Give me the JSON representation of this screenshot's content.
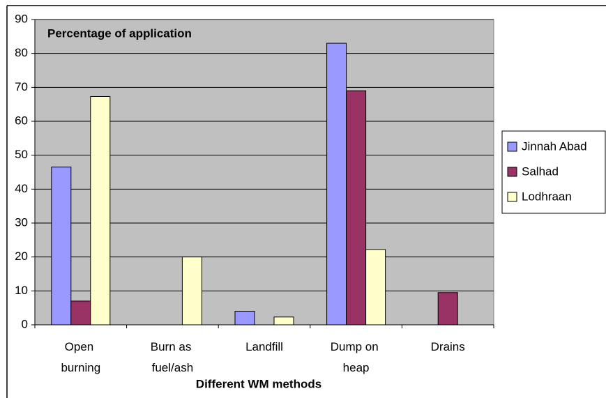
{
  "chart_data": {
    "type": "bar",
    "title": "Percentage of application",
    "x_label": "Different WM methods",
    "categories": [
      "Open burning",
      "Burn as fuel/ash",
      "Landfill",
      "Dump on heap",
      "Drains"
    ],
    "series": [
      {
        "name": "Jinnah Abad",
        "color": "#9999ff",
        "values": [
          46.5,
          0,
          4,
          83,
          0
        ]
      },
      {
        "name": "Salhad",
        "color": "#993366",
        "values": [
          7,
          0,
          0,
          69,
          9.5
        ]
      },
      {
        "name": "Lodhraan",
        "color": "#ffffcc",
        "values": [
          67.3,
          20,
          2.3,
          22.2,
          0
        ]
      }
    ],
    "ylim": [
      0,
      90
    ],
    "yticks": [
      0,
      10,
      20,
      30,
      40,
      50,
      60,
      70,
      80,
      90
    ],
    "grid": true
  }
}
